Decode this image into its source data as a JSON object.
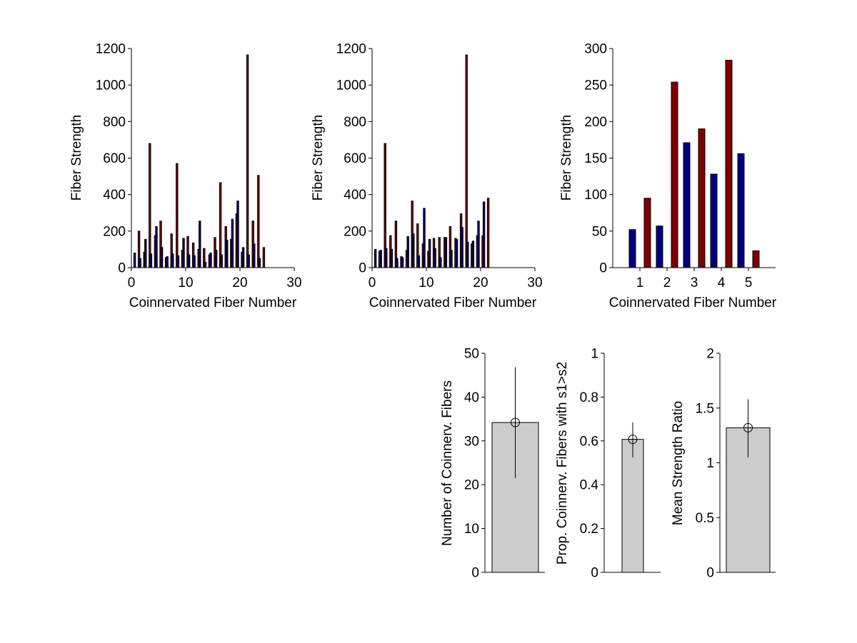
{
  "chart_data": [
    {
      "id": "panel-a",
      "type": "bar",
      "xlabel": "Coinnervated Fiber Number",
      "ylabel": "Fiber Strength",
      "xlim": [
        0,
        30
      ],
      "ylim": [
        0,
        1200
      ],
      "xticks": [
        0,
        10,
        20,
        30
      ],
      "yticks": [
        0,
        200,
        400,
        600,
        800,
        1000,
        1200
      ],
      "series_colors": [
        "#00007f",
        "#7f0000"
      ],
      "x": [
        1,
        2,
        3,
        4,
        5,
        6,
        7,
        8,
        9,
        10,
        11,
        12,
        13,
        14,
        15,
        16,
        17,
        18,
        19,
        20,
        21,
        22,
        23,
        24
      ],
      "series": [
        {
          "name": "s1",
          "values": [
            80,
            50,
            155,
            75,
            225,
            110,
            60,
            75,
            65,
            160,
            70,
            65,
            255,
            30,
            80,
            95,
            70,
            150,
            265,
            365,
            110,
            70,
            130,
            50
          ]
        },
        {
          "name": "s2",
          "values": [
            200,
            85,
            680,
            175,
            255,
            55,
            185,
            570,
            95,
            170,
            135,
            100,
            105,
            70,
            165,
            465,
            225,
            155,
            295,
            85,
            1165,
            255,
            505,
            110
          ]
        }
      ]
    },
    {
      "id": "panel-b",
      "type": "bar",
      "xlabel": "Coinnervated Fiber Number",
      "ylabel": "Fiber Strength",
      "xlim": [
        0,
        30
      ],
      "ylim": [
        0,
        1200
      ],
      "xticks": [
        0,
        10,
        20,
        30
      ],
      "yticks": [
        0,
        200,
        400,
        600,
        800,
        1000,
        1200
      ],
      "series_colors": [
        "#00007f",
        "#7f0000"
      ],
      "x": [
        1,
        2,
        3,
        4,
        5,
        6,
        7,
        8,
        9,
        10,
        11,
        12,
        13,
        14,
        15,
        16,
        17,
        18,
        19,
        20,
        21
      ],
      "series": [
        {
          "name": "s1",
          "values": [
            100,
            95,
            105,
            100,
            50,
            55,
            170,
            185,
            65,
            325,
            155,
            105,
            55,
            165,
            95,
            155,
            220,
            140,
            145,
            255,
            360
          ]
        },
        {
          "name": "s2",
          "values": [
            90,
            680,
            175,
            255,
            60,
            95,
            365,
            240,
            130,
            90,
            160,
            165,
            165,
            225,
            160,
            295,
            1165,
            130,
            175,
            175,
            380
          ]
        }
      ]
    },
    {
      "id": "panel-c",
      "type": "bar",
      "xlabel": "Coinnervated Fiber Number",
      "ylabel": "Fiber Strength",
      "xlim": [
        0,
        6
      ],
      "ylim": [
        0,
        300
      ],
      "xticks": [
        1,
        2,
        3,
        4,
        5
      ],
      "yticks": [
        0,
        50,
        100,
        150,
        200,
        250,
        300
      ],
      "series_colors": [
        "#00007f",
        "#7f0000"
      ],
      "x": [
        1,
        2,
        3,
        4,
        5
      ],
      "series": [
        {
          "name": "s1",
          "values": [
            52,
            57,
            171,
            128,
            156
          ]
        },
        {
          "name": "s2",
          "values": [
            95,
            254,
            190,
            284,
            23
          ]
        }
      ]
    },
    {
      "id": "panel-d",
      "type": "bar",
      "xlabel": "",
      "ylabel": "Number of Coinnerv. Fibers",
      "ylim": [
        0,
        50
      ],
      "yticks": [
        0,
        10,
        20,
        30,
        40,
        50
      ],
      "values": [
        34.2
      ],
      "error": [
        21.5,
        46.8
      ],
      "bar_color": "#cccccc"
    },
    {
      "id": "panel-e",
      "type": "bar",
      "xlabel": "",
      "ylabel": "Prop. Coinnerv. Fibers with s1>s2",
      "ylim": [
        0,
        1
      ],
      "yticks": [
        0,
        0.2,
        0.4,
        0.6,
        0.8,
        1
      ],
      "values": [
        0.607
      ],
      "error": [
        0.525,
        0.685
      ],
      "bar_color": "#cccccc"
    },
    {
      "id": "panel-f",
      "type": "bar",
      "xlabel": "",
      "ylabel": "Mean Strength Ratio",
      "ylim": [
        0,
        2
      ],
      "yticks": [
        0,
        0.5,
        1,
        1.5,
        2
      ],
      "values": [
        1.32
      ],
      "error": [
        1.05,
        1.58
      ],
      "bar_color": "#cccccc"
    }
  ]
}
